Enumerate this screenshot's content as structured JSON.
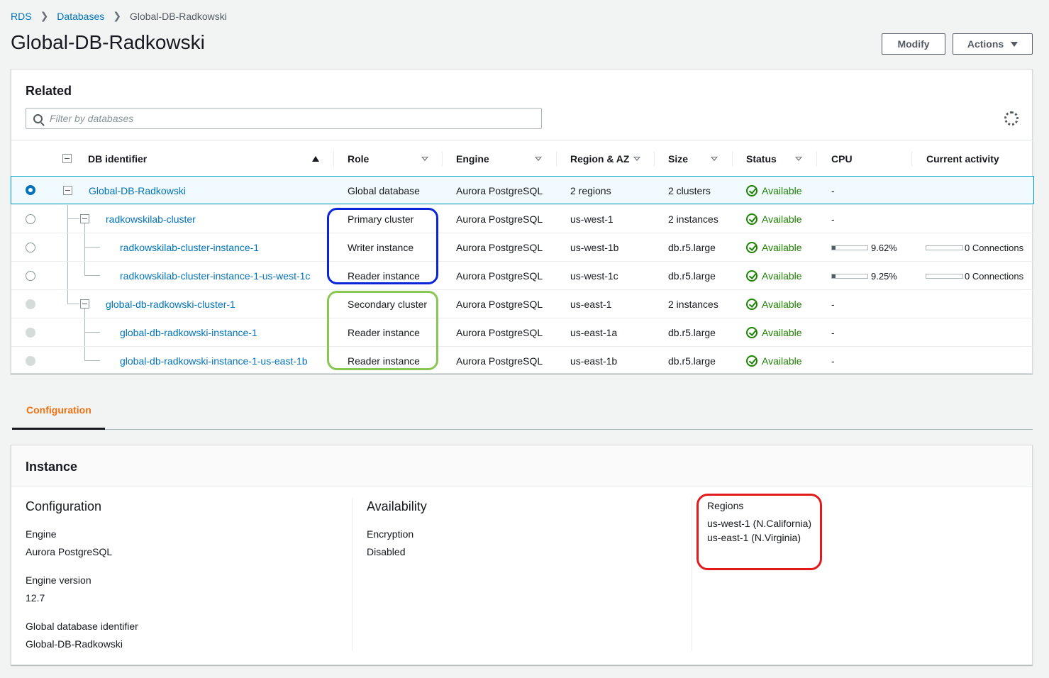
{
  "breadcrumb": {
    "items": [
      "RDS",
      "Databases"
    ],
    "current": "Global-DB-Radkowski"
  },
  "page_title": "Global-DB-Radkowski",
  "buttons": {
    "modify": "Modify",
    "actions": "Actions"
  },
  "related": {
    "title": "Related",
    "filter_placeholder": "Filter by databases",
    "columns": [
      "DB identifier",
      "Role",
      "Engine",
      "Region & AZ",
      "Size",
      "Status",
      "CPU",
      "Current activity"
    ],
    "rows": [
      {
        "id": "Global-DB-Radkowski",
        "role": "Global database",
        "engine": "Aurora PostgreSQL",
        "region": "2 regions",
        "size": "2 clusters",
        "status": "Available",
        "cpu": "-",
        "activity": ""
      },
      {
        "id": "radkowskilab-cluster",
        "role": "Primary cluster",
        "engine": "Aurora PostgreSQL",
        "region": "us-west-1",
        "size": "2 instances",
        "status": "Available",
        "cpu": "-",
        "activity": ""
      },
      {
        "id": "radkowskilab-cluster-instance-1",
        "role": "Writer instance",
        "engine": "Aurora PostgreSQL",
        "region": "us-west-1b",
        "size": "db.r5.large",
        "status": "Available",
        "cpu": "9.62%",
        "cpu_value": 9.62,
        "activity": "0 Connections"
      },
      {
        "id": "radkowskilab-cluster-instance-1-us-west-1c",
        "role": "Reader instance",
        "engine": "Aurora PostgreSQL",
        "region": "us-west-1c",
        "size": "db.r5.large",
        "status": "Available",
        "cpu": "9.25%",
        "cpu_value": 9.25,
        "activity": "0 Connections"
      },
      {
        "id": "global-db-radkowski-cluster-1",
        "role": "Secondary cluster",
        "engine": "Aurora PostgreSQL",
        "region": "us-east-1",
        "size": "2 instances",
        "status": "Available",
        "cpu": "-",
        "activity": ""
      },
      {
        "id": "global-db-radkowski-instance-1",
        "role": "Reader instance",
        "engine": "Aurora PostgreSQL",
        "region": "us-east-1a",
        "size": "db.r5.large",
        "status": "Available",
        "cpu": "-",
        "activity": ""
      },
      {
        "id": "global-db-radkowski-instance-1-us-east-1b",
        "role": "Reader instance",
        "engine": "Aurora PostgreSQL",
        "region": "us-east-1b",
        "size": "db.r5.large",
        "status": "Available",
        "cpu": "-",
        "activity": ""
      }
    ]
  },
  "tabs": {
    "active": "Configuration"
  },
  "instance": {
    "title": "Instance",
    "configuration": {
      "title": "Configuration",
      "engine_label": "Engine",
      "engine_value": "Aurora PostgreSQL",
      "version_label": "Engine version",
      "version_value": "12.7",
      "gdi_label": "Global database identifier",
      "gdi_value": "Global-DB-Radkowski"
    },
    "availability": {
      "title": "Availability",
      "encryption_label": "Encryption",
      "encryption_value": "Disabled"
    },
    "regions": {
      "label": "Regions",
      "values": [
        "us-west-1 (N.California)",
        "us-east-1 (N.Virginia)"
      ]
    }
  },
  "colors": {
    "link": "#0073bb",
    "available": "#1d8102",
    "tab_active": "#ec7211",
    "highlight_primary": "#0a24d9",
    "highlight_secondary": "#8ac653",
    "highlight_regions": "#e11b1b"
  }
}
